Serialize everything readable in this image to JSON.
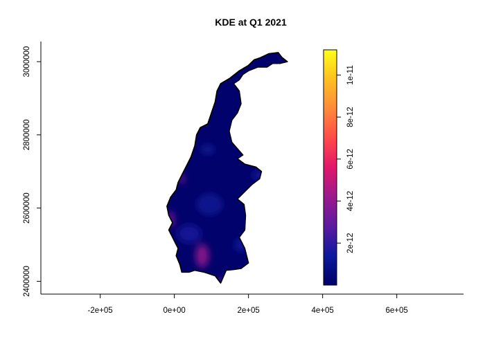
{
  "chart_data": {
    "type": "heatmap",
    "title": "KDE at Q1 2021",
    "xlabel": "",
    "ylabel": "",
    "xlim": [
      -360000,
      780000
    ],
    "ylim": [
      2365000,
      3055000
    ],
    "x_ticks": [
      {
        "value": -200000,
        "label": "-2e+05"
      },
      {
        "value": 0,
        "label": "0e+00"
      },
      {
        "value": 200000,
        "label": "2e+05"
      },
      {
        "value": 400000,
        "label": "4e+05"
      },
      {
        "value": 600000,
        "label": "6e+05"
      }
    ],
    "y_ticks": [
      {
        "value": 2400000,
        "label": "2400000"
      },
      {
        "value": 2600000,
        "label": "2600000"
      },
      {
        "value": 2800000,
        "label": "2800000"
      },
      {
        "value": 3000000,
        "label": "3000000"
      }
    ],
    "colorbar": {
      "min": 0,
      "max": 1.12e-11,
      "colors": [
        "#000066",
        "#0d1a9c",
        "#5a1aa0",
        "#9a1a8e",
        "#e0186a",
        "#ff4a4a",
        "#ff8a3a",
        "#ffc020",
        "#ffff1a"
      ],
      "ticks": [
        {
          "value": 2e-12,
          "label": "2e-12"
        },
        {
          "value": 4e-12,
          "label": "4e-12"
        },
        {
          "value": 6e-12,
          "label": "6e-12"
        },
        {
          "value": 8e-12,
          "label": "8e-12"
        },
        {
          "value": 1e-11,
          "label": "1e-11"
        }
      ]
    },
    "region_outline": [
      [
        230000,
        3010000
      ],
      [
        255000,
        3022000
      ],
      [
        280000,
        3025000
      ],
      [
        290000,
        3012000
      ],
      [
        305000,
        3000000
      ],
      [
        285000,
        2995000
      ],
      [
        265000,
        2995000
      ],
      [
        250000,
        2985000
      ],
      [
        225000,
        2985000
      ],
      [
        200000,
        2975000
      ],
      [
        185000,
        2965000
      ],
      [
        175000,
        2950000
      ],
      [
        160000,
        2940000
      ],
      [
        175000,
        2920000
      ],
      [
        180000,
        2885000
      ],
      [
        170000,
        2860000
      ],
      [
        155000,
        2840000
      ],
      [
        148000,
        2810000
      ],
      [
        155000,
        2780000
      ],
      [
        185000,
        2745000
      ],
      [
        170000,
        2735000
      ],
      [
        190000,
        2720000
      ],
      [
        220000,
        2712000
      ],
      [
        235000,
        2700000
      ],
      [
        230000,
        2680000
      ],
      [
        210000,
        2665000
      ],
      [
        195000,
        2650000
      ],
      [
        185000,
        2640000
      ],
      [
        170000,
        2625000
      ],
      [
        188000,
        2610000
      ],
      [
        192000,
        2580000
      ],
      [
        190000,
        2540000
      ],
      [
        175000,
        2520000
      ],
      [
        190000,
        2490000
      ],
      [
        200000,
        2450000
      ],
      [
        180000,
        2435000
      ],
      [
        160000,
        2432000
      ],
      [
        140000,
        2430000
      ],
      [
        125000,
        2395000
      ],
      [
        110000,
        2415000
      ],
      [
        80000,
        2425000
      ],
      [
        55000,
        2430000
      ],
      [
        40000,
        2425000
      ],
      [
        20000,
        2425000
      ],
      [
        15000,
        2445000
      ],
      [
        5000,
        2470000
      ],
      [
        10000,
        2490000
      ],
      [
        -5000,
        2520000
      ],
      [
        -15000,
        2540000
      ],
      [
        -5000,
        2560000
      ],
      [
        -15000,
        2580000
      ],
      [
        -20000,
        2605000
      ],
      [
        -10000,
        2630000
      ],
      [
        5000,
        2650000
      ],
      [
        10000,
        2670000
      ],
      [
        20000,
        2690000
      ],
      [
        30000,
        2710000
      ],
      [
        45000,
        2740000
      ],
      [
        55000,
        2770000
      ],
      [
        60000,
        2800000
      ],
      [
        70000,
        2820000
      ],
      [
        90000,
        2830000
      ],
      [
        100000,
        2860000
      ],
      [
        110000,
        2890000
      ],
      [
        115000,
        2920000
      ],
      [
        125000,
        2940000
      ],
      [
        150000,
        2955000
      ],
      [
        175000,
        2975000
      ],
      [
        200000,
        2990000
      ],
      [
        215000,
        3005000
      ]
    ],
    "hotspots": [
      {
        "x": 75000,
        "y": 2470000,
        "value": 4.2e-12,
        "rx": 18000,
        "ry": 32000
      },
      {
        "x": -10000,
        "y": 2570000,
        "value": 3.6e-12,
        "rx": 10000,
        "ry": 22000
      },
      {
        "x": 20000,
        "y": 2680000,
        "value": 3.2e-12,
        "rx": 8000,
        "ry": 15000
      },
      {
        "x": 125000,
        "y": 2400000,
        "value": 3.2e-12,
        "rx": 8000,
        "ry": 12000
      },
      {
        "x": 40000,
        "y": 2530000,
        "value": 1.6e-12,
        "rx": 32000,
        "ry": 25000
      },
      {
        "x": 230000,
        "y": 2690000,
        "value": 1.6e-12,
        "rx": 20000,
        "ry": 14000
      },
      {
        "x": 180000,
        "y": 2500000,
        "value": 1.5e-12,
        "rx": 18000,
        "ry": 20000
      },
      {
        "x": 95000,
        "y": 2610000,
        "value": 1.2e-12,
        "rx": 35000,
        "ry": 30000
      },
      {
        "x": 170000,
        "y": 2820000,
        "value": 1.1e-12,
        "rx": 15000,
        "ry": 15000
      },
      {
        "x": 90000,
        "y": 2760000,
        "value": 1.1e-12,
        "rx": 20000,
        "ry": 15000
      }
    ]
  }
}
